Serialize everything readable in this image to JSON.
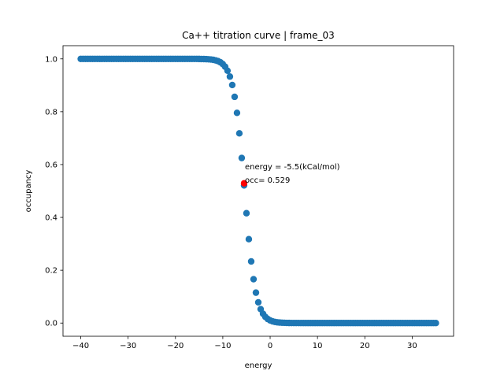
{
  "chart_data": {
    "type": "scatter",
    "title": "Ca++ titration curve | frame_03",
    "xlabel": "energy",
    "ylabel": "occupancy",
    "xlim": [
      -43.75,
      38.75
    ],
    "ylim": [
      -0.05,
      1.05
    ],
    "x_ticks": [
      -40,
      -30,
      -20,
      -10,
      0,
      10,
      20,
      30
    ],
    "y_ticks": [
      0.0,
      0.2,
      0.4,
      0.6,
      0.8,
      1.0
    ],
    "x_tick_labels": [
      "−40",
      "−30",
      "−20",
      "−10",
      "0",
      "10",
      "20",
      "30"
    ],
    "y_tick_labels": [
      "0.0",
      "0.2",
      "0.4",
      "0.6",
      "0.8",
      "1.0"
    ],
    "grid": false,
    "series": [
      {
        "color": "#1f77b4",
        "x_start": -40,
        "x_end": 35,
        "x_step": 0.5,
        "curve": "sigmoid",
        "midpoint": -5.4,
        "slope": 0.85
      }
    ],
    "highlight": {
      "x": -5.5,
      "y": 0.529,
      "color": "#ff0000"
    },
    "annotation": {
      "line1": "energy = -5.5(kCal/mol)",
      "line2": "occ= 0.529"
    }
  }
}
